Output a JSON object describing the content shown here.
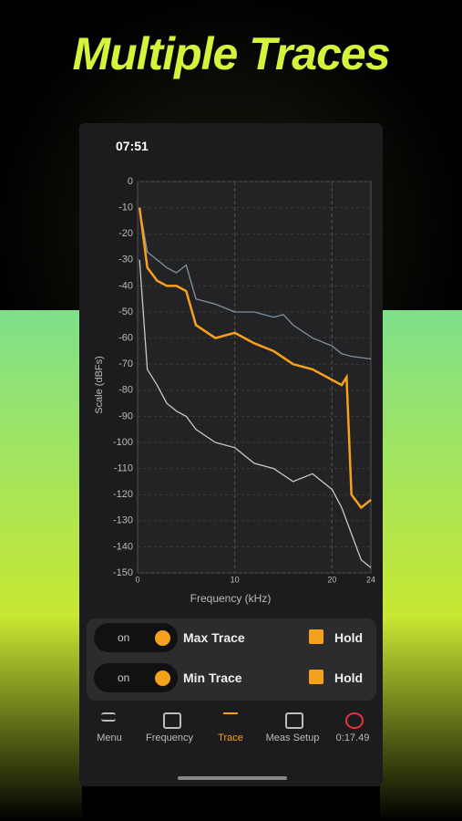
{
  "title": "Multiple Traces",
  "status": {
    "time": "07:51"
  },
  "chart": {
    "type": "line",
    "ylabel": "Scale (dBFs)",
    "xlabel": "Frequency (kHz)",
    "xlim": [
      0,
      24
    ],
    "ylim": [
      -150,
      0
    ],
    "xticks": [
      0,
      10,
      20,
      24
    ],
    "yticks": [
      0,
      -10,
      -20,
      -30,
      -40,
      -50,
      -60,
      -70,
      -80,
      -90,
      -100,
      -110,
      -120,
      -130,
      -140,
      -150
    ],
    "grid": true,
    "series": [
      {
        "name": "Max Trace",
        "color": "#7f93a3",
        "x": [
          0.2,
          1,
          2,
          3,
          4,
          5,
          6,
          8,
          10,
          12,
          14,
          15,
          16,
          18,
          20,
          21,
          22,
          24
        ],
        "values": [
          -10,
          -27,
          -30,
          -33,
          -35,
          -32,
          -45,
          -47,
          -50,
          -50,
          -52,
          -51,
          -55,
          -60,
          -63,
          -66,
          -67,
          -68
        ]
      },
      {
        "name": "Trace",
        "color": "#f5a11c",
        "x": [
          0.2,
          1,
          2,
          3,
          4,
          5,
          6,
          8,
          10,
          12,
          14,
          16,
          18,
          20,
          21,
          21.5,
          22,
          23,
          24
        ],
        "values": [
          -10,
          -33,
          -38,
          -40,
          -40,
          -42,
          -55,
          -60,
          -58,
          -62,
          -65,
          -70,
          -72,
          -76,
          -78,
          -75,
          -120,
          -125,
          -122
        ]
      },
      {
        "name": "Min Trace",
        "color": "#c8c8c8",
        "x": [
          0.2,
          1,
          2,
          3,
          4,
          5,
          6,
          8,
          10,
          12,
          14,
          16,
          18,
          20,
          21,
          22,
          23,
          24
        ],
        "values": [
          -30,
          -72,
          -78,
          -85,
          -88,
          -90,
          -95,
          -100,
          -102,
          -108,
          -110,
          -115,
          -112,
          -118,
          -125,
          -135,
          -145,
          -148
        ]
      }
    ]
  },
  "controls": [
    {
      "toggle": "on",
      "label": "Max Trace",
      "check": "Hold"
    },
    {
      "toggle": "on",
      "label": "Min Trace",
      "check": "Hold"
    }
  ],
  "tabs": [
    "Menu",
    "Frequency",
    "Trace",
    "Meas Setup",
    "0:17.49"
  ]
}
